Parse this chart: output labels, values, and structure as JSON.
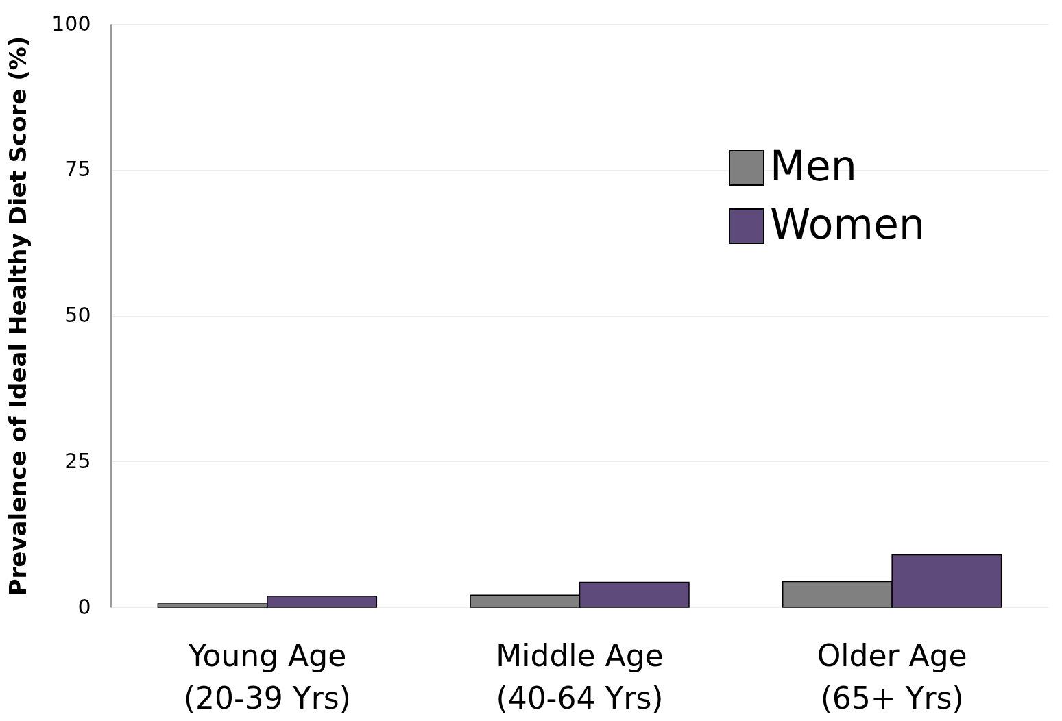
{
  "chart_data": {
    "type": "bar",
    "ylabel": "Prevalence of Ideal Healthy Diet Score (%)",
    "categories": [
      "Young Age\n(20-39 Yrs)",
      "Middle Age\n(40-64 Yrs)",
      "Older Age\n(65+ Yrs)"
    ],
    "series": [
      {
        "name": "Men",
        "color": "#808080",
        "values": [
          0.6,
          2.1,
          4.4
        ]
      },
      {
        "name": "Women",
        "color": "#5f4b7b",
        "values": [
          1.9,
          4.3,
          9.0
        ]
      }
    ],
    "ylim": [
      0,
      100
    ],
    "yticks": [
      0,
      25,
      50,
      75,
      100
    ],
    "grid": "y",
    "legend": "top right"
  }
}
